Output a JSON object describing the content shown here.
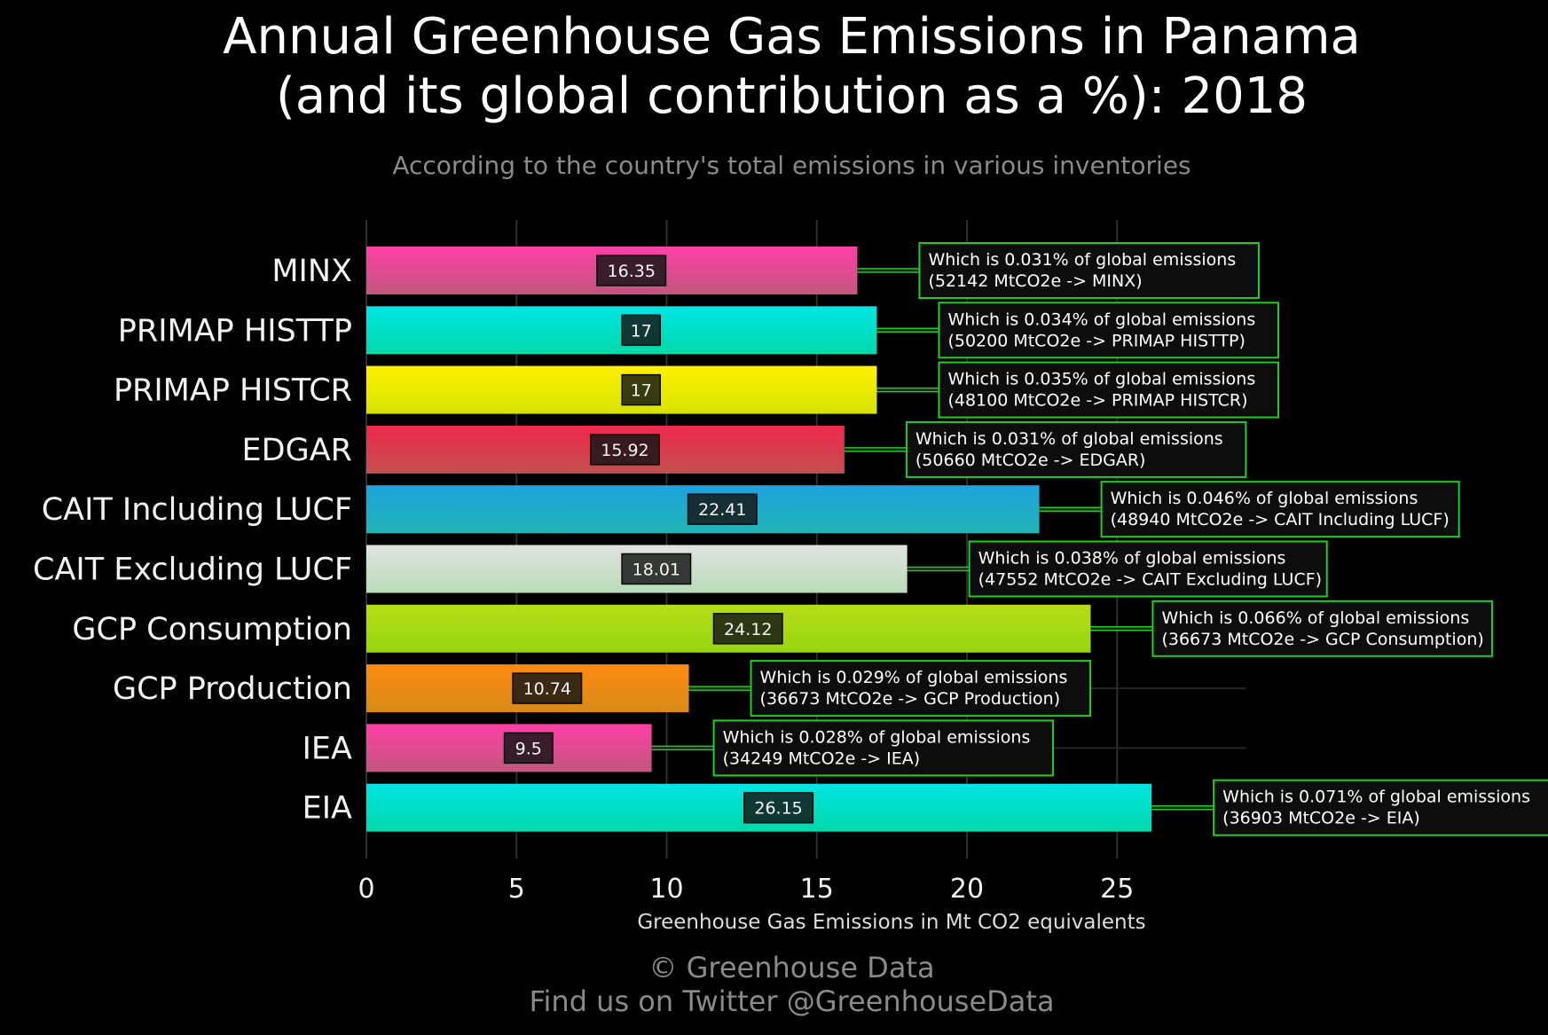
{
  "title_line1": "Annual Greenhouse Gas Emissions in Panama",
  "title_line2": "(and its global contribution as a %): 2018",
  "subtitle": "According to the country's total emissions in various inventories",
  "footer_line1": "© Greenhouse Data",
  "footer_line2": "Find us on Twitter @GreenhouseData",
  "chart_data": {
    "type": "bar",
    "orientation": "horizontal",
    "categories": [
      "MINX",
      "PRIMAP HISTTP",
      "PRIMAP HISTCR",
      "EDGAR",
      "CAIT Including LUCF",
      "CAIT Excluding LUCF",
      "GCP Consumption",
      "GCP Production",
      "IEA",
      "EIA"
    ],
    "values": [
      16.35,
      17,
      17,
      15.92,
      22.41,
      18.01,
      24.12,
      10.74,
      9.5,
      26.15
    ],
    "value_labels": [
      "16.35",
      "17",
      "17",
      "15.92",
      "22.41",
      "18.01",
      "24.12",
      "10.74",
      "9.5",
      "26.15"
    ],
    "annotations": [
      {
        "line1": "Which is 0.031% of global emissions",
        "line2": "(52142 MtCO2e -> MINX)"
      },
      {
        "line1": "Which is 0.034% of global emissions",
        "line2": "(50200 MtCO2e -> PRIMAP HISTTP)"
      },
      {
        "line1": "Which is 0.035% of global emissions",
        "line2": "(48100 MtCO2e -> PRIMAP HISTCR)"
      },
      {
        "line1": "Which is 0.031% of global emissions",
        "line2": "(50660 MtCO2e -> EDGAR)"
      },
      {
        "line1": "Which is 0.046% of global emissions",
        "line2": "(48940 MtCO2e -> CAIT Including LUCF)"
      },
      {
        "line1": "Which is 0.038% of global emissions",
        "line2": "(47552 MtCO2e -> CAIT Excluding LUCF)"
      },
      {
        "line1": "Which is 0.066% of global emissions",
        "line2": "(36673 MtCO2e -> GCP Consumption)"
      },
      {
        "line1": "Which is 0.029% of global emissions",
        "line2": "(36673 MtCO2e -> GCP Production)"
      },
      {
        "line1": "Which is 0.028% of global emissions",
        "line2": "(34249 MtCO2e -> IEA)"
      },
      {
        "line1": "Which is 0.071% of global emissions",
        "line2": "(36903 MtCO2e -> EIA)"
      }
    ],
    "colors": [
      [
        "#ff3fa6",
        "#c2577e"
      ],
      [
        "#00e5e5",
        "#00d9a8"
      ],
      [
        "#fff000",
        "#d6e400"
      ],
      [
        "#f0284e",
        "#c2504f"
      ],
      [
        "#1ea2de",
        "#21b3b3"
      ],
      [
        "#e2e2e2",
        "#b8dcb8"
      ],
      [
        "#b6dc18",
        "#96d610"
      ],
      [
        "#ff8a10",
        "#d88a18"
      ],
      [
        "#ff3fa6",
        "#c2577e"
      ],
      [
        "#00e5e5",
        "#00d9a8"
      ]
    ],
    "annotation_border_color": "#22cc22",
    "xlabel": "Greenhouse Gas Emissions in Mt CO2 equivalents",
    "xticks": [
      0,
      5,
      10,
      15,
      20,
      25
    ],
    "xlim": [
      0,
      29.5
    ],
    "grid": true,
    "legend": "none"
  }
}
